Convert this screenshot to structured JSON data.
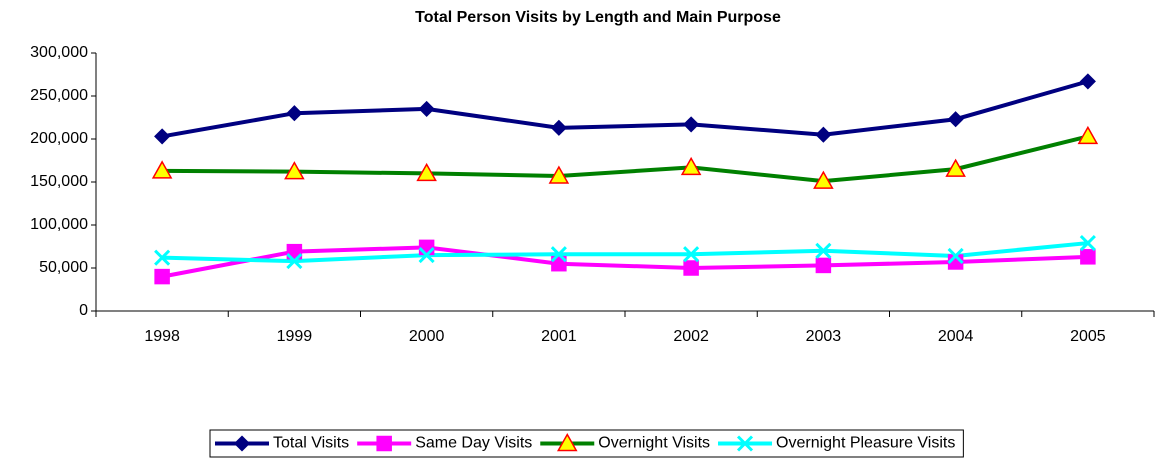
{
  "chart_data": {
    "type": "line",
    "title": "Total Person Visits by Length and Main Purpose",
    "categories": [
      "1998",
      "1999",
      "2000",
      "2001",
      "2002",
      "2003",
      "2004",
      "2005"
    ],
    "series": [
      {
        "name": "Total Visits",
        "color": "#000080",
        "marker": "diamond",
        "marker_fill": "#000080",
        "marker_edge": "#000080",
        "values": [
          203000,
          230000,
          235000,
          213000,
          217000,
          205000,
          223000,
          267000
        ]
      },
      {
        "name": "Same Day Visits",
        "color": "#ff00ff",
        "marker": "square",
        "marker_fill": "#ff00ff",
        "marker_edge": "#ff00ff",
        "values": [
          40000,
          69000,
          74000,
          55000,
          50000,
          53000,
          57000,
          63000
        ]
      },
      {
        "name": "Overnight Visits",
        "color": "#008000",
        "marker": "triangle",
        "marker_fill": "#ffff00",
        "marker_edge": "#ff0000",
        "values": [
          163000,
          162000,
          160000,
          157000,
          167000,
          151000,
          165000,
          203000
        ]
      },
      {
        "name": "Overnight Pleasure Visits",
        "color": "#00ffff",
        "marker": "x",
        "marker_fill": "#00ffff",
        "marker_edge": "#00ffff",
        "values": [
          62000,
          58000,
          65000,
          66000,
          66000,
          70000,
          64000,
          79000
        ]
      }
    ],
    "ylim": [
      0,
      300000
    ],
    "yticks": [
      0,
      {
        "value": 50000,
        "label": "50,000"
      },
      {
        "value": 100000,
        "label": "100,000"
      },
      {
        "value": 150000,
        "label": "150,000"
      },
      {
        "value": 200000,
        "label": "200,000"
      },
      {
        "value": 250000,
        "label": "250,000"
      },
      {
        "value": 300000,
        "label": "300,000"
      }
    ],
    "grid": false,
    "legend": "bottom"
  }
}
